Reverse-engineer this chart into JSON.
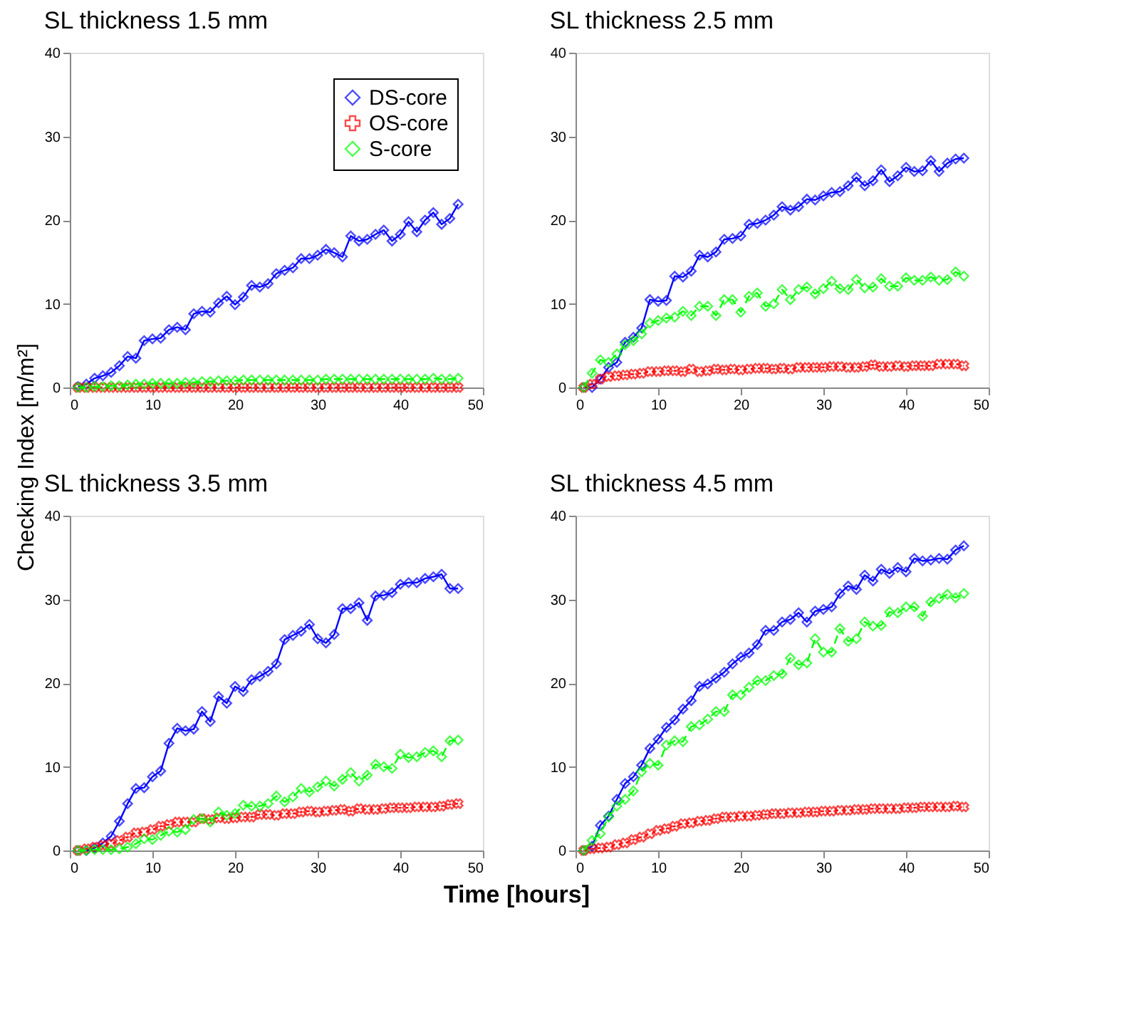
{
  "chart_data": [
    {
      "type": "line",
      "title": "SL thickness 1.5 mm",
      "x": [
        1,
        2,
        3,
        4,
        5,
        6,
        7,
        8,
        9,
        10,
        11,
        12,
        13,
        14,
        15,
        16,
        17,
        18,
        19,
        20,
        21,
        22,
        23,
        24,
        25,
        26,
        27,
        28,
        29,
        30,
        31,
        32,
        33,
        34,
        35,
        36,
        37,
        38,
        39,
        40,
        41,
        42,
        43,
        44,
        45,
        46,
        47
      ],
      "xlim": [
        0,
        50
      ],
      "xticks": [
        0,
        10,
        20,
        30,
        40,
        50
      ],
      "ylim": [
        0,
        40
      ],
      "yticks": [
        0,
        10,
        20,
        30,
        40
      ],
      "grid": false,
      "legend": "top right",
      "series": [
        {
          "name": "DS-core",
          "color": "#0000ff",
          "marker": "diamond",
          "line_style": "solid",
          "values": [
            0.1,
            0.4,
            1.1,
            1.4,
            1.8,
            2.6,
            3.7,
            3.5,
            5.6,
            5.8,
            5.9,
            6.9,
            7.2,
            6.9,
            8.8,
            9.1,
            9.0,
            10.1,
            10.9,
            9.9,
            10.8,
            12.2,
            12.0,
            12.4,
            13.6,
            14.0,
            14.3,
            15.4,
            15.4,
            15.8,
            16.5,
            16.1,
            15.6,
            18.1,
            17.5,
            17.7,
            18.3,
            18.8,
            17.5,
            18.3,
            19.8,
            18.6,
            20.0,
            20.9,
            19.5,
            20.2,
            21.9
          ]
        },
        {
          "name": "OS-core",
          "color": "#ff0000",
          "marker": "cross",
          "line_style": "dotted",
          "values": [
            0,
            0,
            0,
            0,
            0,
            0,
            0,
            0,
            0,
            0,
            0,
            0,
            0,
            0,
            0,
            0,
            0,
            0,
            0,
            0,
            0,
            0,
            0,
            0,
            0,
            0,
            0,
            0,
            0,
            0,
            0,
            0,
            0,
            0,
            0,
            0,
            0,
            0,
            0,
            0,
            0,
            0,
            0,
            0,
            0,
            0,
            0
          ]
        },
        {
          "name": "S-core",
          "color": "#00ff00",
          "marker": "diamond",
          "line_style": "dashed",
          "values": [
            0,
            0,
            0.1,
            0.1,
            0.2,
            0.2,
            0.3,
            0.4,
            0.4,
            0.5,
            0.5,
            0.5,
            0.5,
            0.6,
            0.6,
            0.7,
            0.7,
            0.8,
            0.8,
            0.8,
            0.9,
            0.9,
            0.9,
            0.9,
            0.9,
            0.9,
            0.9,
            0.9,
            0.9,
            0.9,
            1.0,
            1.0,
            1.0,
            1.0,
            1.0,
            1.0,
            1.0,
            1.0,
            1.0,
            1.0,
            1.0,
            1.0,
            1.0,
            1.1,
            1.0,
            1.0,
            1.1
          ]
        }
      ]
    },
    {
      "type": "line",
      "title": "SL thickness 2.5 mm",
      "x": [
        1,
        2,
        3,
        4,
        5,
        6,
        7,
        8,
        9,
        10,
        11,
        12,
        13,
        14,
        15,
        16,
        17,
        18,
        19,
        20,
        21,
        22,
        23,
        24,
        25,
        26,
        27,
        28,
        29,
        30,
        31,
        32,
        33,
        34,
        35,
        36,
        37,
        38,
        39,
        40,
        41,
        42,
        43,
        44,
        45,
        46,
        47
      ],
      "xlim": [
        0,
        50
      ],
      "xticks": [
        0,
        10,
        20,
        30,
        40,
        50
      ],
      "ylim": [
        0,
        40
      ],
      "yticks": [
        0,
        10,
        20,
        30,
        40
      ],
      "grid": false,
      "series": [
        {
          "color": "#0000ff",
          "marker": "diamond",
          "line_style": "solid",
          "values": [
            0,
            0,
            1.0,
            2.4,
            3.0,
            5.4,
            6.0,
            7.1,
            10.5,
            10.3,
            10.4,
            13.3,
            13.2,
            13.9,
            15.8,
            15.6,
            16.2,
            17.7,
            17.8,
            18.1,
            19.5,
            19.6,
            20.0,
            20.6,
            21.6,
            21.2,
            21.6,
            22.5,
            22.4,
            22.9,
            23.3,
            23.4,
            24.1,
            25.1,
            24.1,
            24.7,
            26.0,
            24.6,
            25.3,
            26.3,
            25.8,
            25.9,
            27.1,
            25.8,
            26.8,
            27.3,
            27.4
          ]
        },
        {
          "color": "#ff0000",
          "marker": "cross",
          "line_style": "dotted",
          "values": [
            0,
            0.4,
            1.0,
            1.3,
            1.4,
            1.5,
            1.6,
            1.7,
            1.9,
            1.9,
            2.0,
            2.0,
            1.9,
            2.2,
            1.9,
            2.0,
            2.2,
            2.1,
            2.2,
            2.1,
            2.2,
            2.3,
            2.3,
            2.2,
            2.3,
            2.2,
            2.4,
            2.4,
            2.4,
            2.4,
            2.5,
            2.5,
            2.4,
            2.4,
            2.5,
            2.7,
            2.5,
            2.5,
            2.6,
            2.5,
            2.6,
            2.6,
            2.6,
            2.8,
            2.8,
            2.8,
            2.6
          ]
        },
        {
          "color": "#00ff00",
          "marker": "diamond",
          "line_style": "dashed",
          "values": [
            0,
            1.7,
            3.3,
            3.0,
            4.0,
            5.1,
            5.6,
            6.4,
            7.7,
            8.0,
            8.3,
            8.4,
            9.1,
            8.6,
            9.7,
            9.7,
            8.6,
            10.5,
            10.5,
            9.0,
            10.9,
            11.3,
            9.7,
            10.0,
            11.7,
            10.5,
            11.7,
            12.0,
            11.2,
            11.8,
            12.7,
            11.8,
            11.7,
            12.9,
            11.9,
            12.0,
            13.0,
            12.1,
            12.1,
            13.1,
            12.8,
            12.8,
            13.2,
            12.8,
            12.9,
            13.8,
            13.3
          ]
        }
      ]
    },
    {
      "type": "line",
      "title": "SL thickness 3.5 mm",
      "ylabel": "Checking Index  [m/m²]",
      "x": [
        1,
        2,
        3,
        4,
        5,
        6,
        7,
        8,
        9,
        10,
        11,
        12,
        13,
        14,
        15,
        16,
        17,
        18,
        19,
        20,
        21,
        22,
        23,
        24,
        25,
        26,
        27,
        28,
        29,
        30,
        31,
        32,
        33,
        34,
        35,
        36,
        37,
        38,
        39,
        40,
        41,
        42,
        43,
        44,
        45,
        46,
        47
      ],
      "xlim": [
        0,
        50
      ],
      "xticks": [
        0,
        10,
        20,
        30,
        40,
        50
      ],
      "ylim": [
        0,
        40
      ],
      "yticks": [
        0,
        10,
        20,
        30,
        40
      ],
      "grid": false,
      "series": [
        {
          "color": "#0000ff",
          "marker": "diamond",
          "line_style": "solid",
          "values": [
            0,
            0,
            0.3,
            0.9,
            1.7,
            3.5,
            5.6,
            7.4,
            7.5,
            8.8,
            9.5,
            12.8,
            14.6,
            14.3,
            14.5,
            16.6,
            15.4,
            18.4,
            17.6,
            19.6,
            19.0,
            20.4,
            20.8,
            21.4,
            22.3,
            25.2,
            25.7,
            26.2,
            27.0,
            25.3,
            24.8,
            25.8,
            28.9,
            28.9,
            29.6,
            27.5,
            30.4,
            30.5,
            30.8,
            31.8,
            32.0,
            32.0,
            32.5,
            32.7,
            33.0,
            31.3,
            31.3
          ]
        },
        {
          "color": "#ff0000",
          "marker": "cross",
          "line_style": "dotted",
          "values": [
            0,
            0.2,
            0.4,
            0.6,
            0.8,
            1.2,
            1.6,
            2.1,
            2.2,
            2.5,
            2.9,
            3.1,
            3.4,
            3.4,
            3.4,
            3.8,
            3.7,
            3.9,
            3.8,
            3.9,
            4.0,
            4.0,
            4.3,
            4.3,
            4.2,
            4.4,
            4.4,
            4.6,
            4.7,
            4.6,
            4.7,
            4.8,
            4.9,
            4.7,
            5.0,
            4.9,
            4.9,
            5.0,
            5.1,
            5.1,
            5.1,
            5.2,
            5.2,
            5.2,
            5.3,
            5.5,
            5.6
          ]
        },
        {
          "color": "#00ff00",
          "marker": "diamond",
          "line_style": "dashed",
          "values": [
            0,
            0,
            0.1,
            0.1,
            0.1,
            0.2,
            0.4,
            0.8,
            1.4,
            1.3,
            1.8,
            2.3,
            2.2,
            2.5,
            3.7,
            3.8,
            3.4,
            4.6,
            4.2,
            4.4,
            5.4,
            5.3,
            5.3,
            5.6,
            6.5,
            5.8,
            6.4,
            7.4,
            7.0,
            7.6,
            8.3,
            7.7,
            8.5,
            9.3,
            8.3,
            9.0,
            10.3,
            10.0,
            9.8,
            11.5,
            11.1,
            11.2,
            11.7,
            11.9,
            11.2,
            13.1,
            13.2
          ]
        }
      ]
    },
    {
      "type": "line",
      "title": "SL thickness 4.5 mm",
      "xlabel": "Time [hours]",
      "x": [
        1,
        2,
        3,
        4,
        5,
        6,
        7,
        8,
        9,
        10,
        11,
        12,
        13,
        14,
        15,
        16,
        17,
        18,
        19,
        20,
        21,
        22,
        23,
        24,
        25,
        26,
        27,
        28,
        29,
        30,
        31,
        32,
        33,
        34,
        35,
        36,
        37,
        38,
        39,
        40,
        41,
        42,
        43,
        44,
        45,
        46,
        47
      ],
      "xlim": [
        0,
        50
      ],
      "xticks": [
        0,
        10,
        20,
        30,
        40,
        50
      ],
      "ylim": [
        0,
        40
      ],
      "yticks": [
        0,
        10,
        20,
        30,
        40
      ],
      "grid": false,
      "series": [
        {
          "color": "#0000ff",
          "marker": "diamond",
          "line_style": "solid",
          "values": [
            0,
            0.5,
            3.0,
            4.1,
            6.1,
            8.0,
            8.8,
            10.2,
            12.2,
            13.3,
            14.7,
            15.6,
            16.9,
            17.9,
            19.6,
            19.9,
            20.6,
            21.3,
            22.3,
            23.1,
            23.6,
            24.6,
            26.3,
            26.3,
            27.3,
            27.6,
            28.4,
            27.3,
            28.6,
            28.8,
            29.1,
            30.7,
            31.6,
            31.2,
            32.9,
            32.2,
            33.6,
            33.1,
            33.8,
            33.3,
            34.9,
            34.6,
            34.7,
            34.9,
            34.8,
            35.9,
            36.4
          ]
        },
        {
          "color": "#ff0000",
          "marker": "cross",
          "line_style": "dotted",
          "values": [
            0,
            0.2,
            0.3,
            0.4,
            0.7,
            0.9,
            1.3,
            1.6,
            2.0,
            2.4,
            2.6,
            2.9,
            3.2,
            3.3,
            3.5,
            3.6,
            3.8,
            4.0,
            4.0,
            4.1,
            4.1,
            4.2,
            4.3,
            4.4,
            4.4,
            4.5,
            4.5,
            4.6,
            4.6,
            4.7,
            4.7,
            4.8,
            4.8,
            4.9,
            4.9,
            5.0,
            5.0,
            5.0,
            5.0,
            5.1,
            5.1,
            5.2,
            5.2,
            5.2,
            5.2,
            5.3,
            5.2
          ]
        },
        {
          "color": "#00ff00",
          "marker": "diamond",
          "line_style": "dashed",
          "values": [
            0,
            1.2,
            2.0,
            4.0,
            5.3,
            6.1,
            7.1,
            9.4,
            10.4,
            10.2,
            12.6,
            13.1,
            13.0,
            14.8,
            15.0,
            15.7,
            16.6,
            16.6,
            18.6,
            18.6,
            19.5,
            20.3,
            20.3,
            20.9,
            21.1,
            23.0,
            22.2,
            22.4,
            25.3,
            23.7,
            23.7,
            26.5,
            25.0,
            25.3,
            27.3,
            26.8,
            26.9,
            28.5,
            28.4,
            29.1,
            29.1,
            28.0,
            29.7,
            30.1,
            30.6,
            30.2,
            30.7
          ]
        }
      ]
    }
  ]
}
